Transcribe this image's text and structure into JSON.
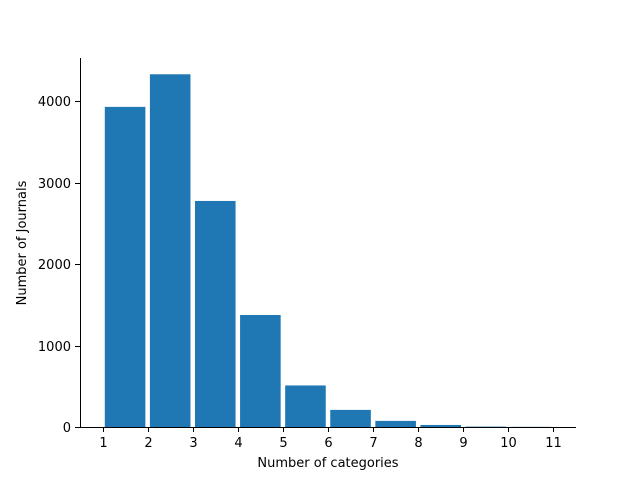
{
  "chart_data": {
    "type": "bar",
    "title": "",
    "xlabel": "Number of categories",
    "ylabel": "Number of Journals",
    "bins": [
      {
        "start": 1,
        "end": 2,
        "value": 3930
      },
      {
        "start": 2,
        "end": 3,
        "value": 4330
      },
      {
        "start": 3,
        "end": 4,
        "value": 2775
      },
      {
        "start": 4,
        "end": 5,
        "value": 1375
      },
      {
        "start": 5,
        "end": 6,
        "value": 510
      },
      {
        "start": 6,
        "end": 7,
        "value": 210
      },
      {
        "start": 7,
        "end": 8,
        "value": 75
      },
      {
        "start": 8,
        "end": 9,
        "value": 25
      },
      {
        "start": 9,
        "end": 10,
        "value": 5
      },
      {
        "start": 10,
        "end": 11,
        "value": 2
      }
    ],
    "xlim": [
      0.5,
      11.5
    ],
    "ylim": [
      0,
      4530
    ],
    "xticks": [
      1,
      2,
      3,
      4,
      5,
      6,
      7,
      8,
      9,
      10,
      11
    ],
    "yticks": [
      0,
      1000,
      2000,
      3000,
      4000
    ],
    "grid": false,
    "legend": "none",
    "bar_color": "#1f77b4"
  }
}
